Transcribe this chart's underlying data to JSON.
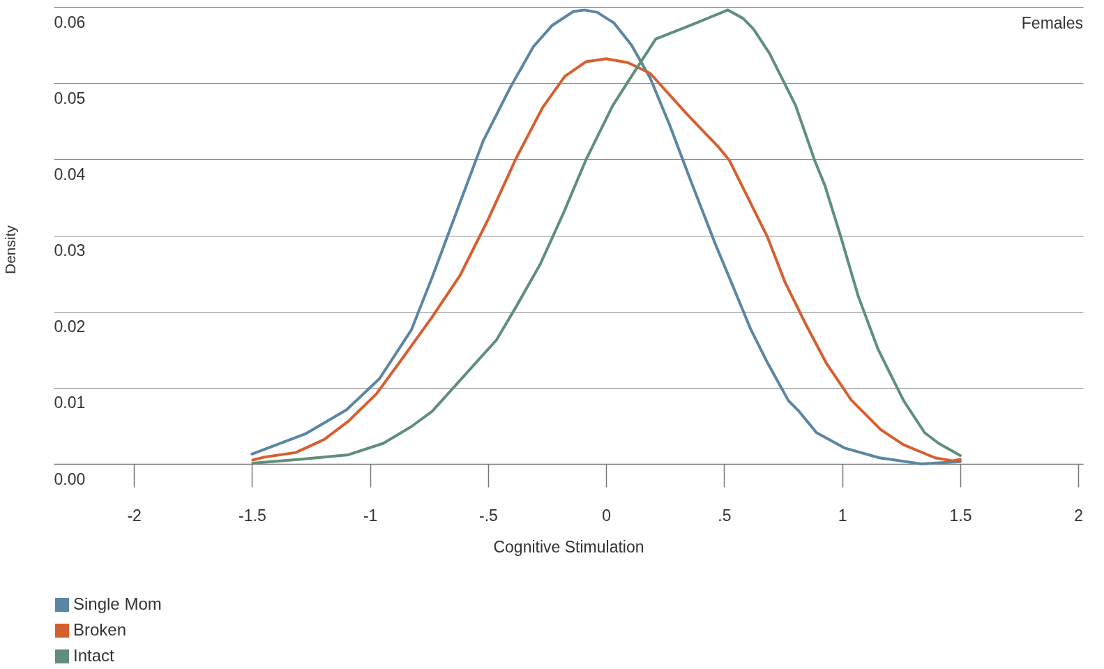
{
  "chart_data": {
    "type": "line",
    "xlabel": "Cognitive Stimulation",
    "ylabel": "Density",
    "annotations": [
      "Females"
    ],
    "xlim": [
      -2.34,
      2.02
    ],
    "ylim": [
      0,
      0.06
    ],
    "xticks": [
      -2,
      -1.5,
      -1,
      {
        "value": -0.5,
        "label": "-.5"
      },
      0,
      {
        "value": 0.5,
        "label": ".5"
      },
      1,
      1.5,
      2
    ],
    "yticks": [
      {
        "value": 0,
        "label": "0.00"
      },
      0.01,
      0.02,
      0.03,
      0.04,
      0.05,
      0.06
    ],
    "grid": "y",
    "legend": "bottom left",
    "marker": "none",
    "line_style": "solid",
    "series": [
      {
        "name": "Single Mom",
        "color": "#5b86a3",
        "x": [
          -1.5,
          -1.27,
          -1.1,
          -0.96,
          -0.825,
          -0.737,
          -0.618,
          -0.521,
          -0.405,
          -0.308,
          -0.228,
          -0.139,
          -0.092,
          -0.038,
          0.033,
          0.107,
          0.186,
          0.269,
          0.358,
          0.462,
          0.536,
          0.609,
          0.683,
          0.772,
          0.817,
          0.891,
          1.009,
          1.157,
          1.334,
          1.5
        ],
        "values": [
          0.0013,
          0.004,
          0.0071,
          0.0112,
          0.0176,
          0.0245,
          0.0344,
          0.0424,
          0.0495,
          0.0548,
          0.0576,
          0.0594,
          0.0596,
          0.0593,
          0.0579,
          0.055,
          0.0507,
          0.0445,
          0.0372,
          0.0289,
          0.0234,
          0.0179,
          0.0133,
          0.0083,
          0.0069,
          0.0041,
          0.0021,
          0.0008,
          0,
          0.0003
        ]
      },
      {
        "name": "Broken",
        "color": "#d65f30",
        "x": [
          -1.497,
          -1.447,
          -1.314,
          -1.195,
          -1.092,
          -0.973,
          -0.855,
          -0.737,
          -0.618,
          -0.5,
          -0.382,
          -0.269,
          -0.175,
          -0.086,
          0,
          0.092,
          0.186,
          0.343,
          0.476,
          0.521,
          0.595,
          0.683,
          0.757,
          0.846,
          0.935,
          1.038,
          1.163,
          1.26,
          1.393,
          1.467,
          1.5
        ],
        "values": [
          0.0005,
          0.0009,
          0.0015,
          0.0032,
          0.0056,
          0.0092,
          0.0142,
          0.0193,
          0.0248,
          0.0321,
          0.0401,
          0.0468,
          0.0509,
          0.0528,
          0.0532,
          0.0527,
          0.0513,
          0.0459,
          0.0416,
          0.0399,
          0.0353,
          0.0298,
          0.0239,
          0.0183,
          0.0131,
          0.0084,
          0.0045,
          0.0025,
          0.0008,
          0.0004,
          0.0006
        ]
      },
      {
        "name": "Intact",
        "color": "#5f8f7a",
        "x": [
          -1.497,
          -1.299,
          -1.092,
          -0.944,
          -0.825,
          -0.737,
          -0.618,
          -0.464,
          -0.382,
          -0.278,
          -0.18,
          -0.086,
          0.027,
          0.101,
          0.21,
          0.358,
          0.515,
          0.58,
          0.624,
          0.692,
          0.802,
          0.885,
          0.926,
          0.994,
          1.068,
          1.151,
          1.26,
          1.349,
          1.408,
          1.5
        ],
        "values": [
          0.0001,
          0.0006,
          0.0012,
          0.0027,
          0.0049,
          0.0069,
          0.011,
          0.0163,
          0.0206,
          0.0263,
          0.033,
          0.0399,
          0.047,
          0.0506,
          0.0558,
          0.0576,
          0.0596,
          0.0585,
          0.0571,
          0.0539,
          0.0471,
          0.0397,
          0.0366,
          0.0298,
          0.022,
          0.0151,
          0.0083,
          0.0041,
          0.0027,
          0.0011
        ]
      }
    ]
  }
}
